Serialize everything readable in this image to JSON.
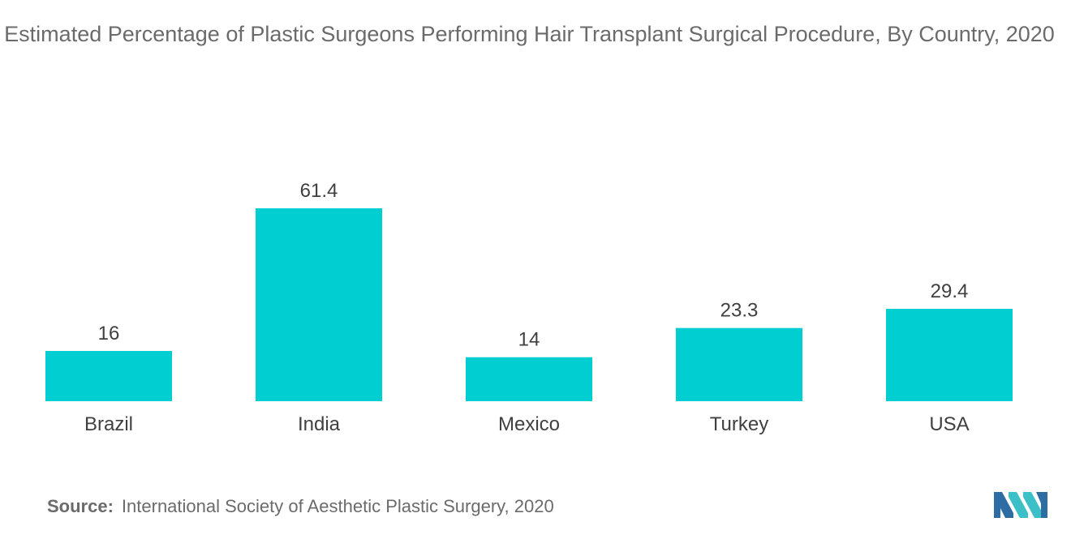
{
  "chart_data": {
    "type": "bar",
    "title": "Estimated Percentage of Plastic Surgeons Performing Hair Transplant Surgical Procedure, By Country, 2020",
    "categories": [
      "Brazil",
      "India",
      "Mexico",
      "Turkey",
      "USA"
    ],
    "values": [
      16,
      61.4,
      14,
      23.3,
      29.4
    ],
    "data_labels": [
      "16",
      "61.4",
      "14",
      "23.3",
      "29.4"
    ],
    "xlabel": "",
    "ylabel": "",
    "ylim": [
      0,
      61.4
    ],
    "grid": false,
    "legend": "none",
    "bar_color": "#00CED1"
  },
  "source": {
    "key": "Source:",
    "text": "International Society of Aesthetic Plastic Surgery, 2020"
  },
  "logo": {
    "icon": "mordor-intelligence-logo-icon",
    "colors": [
      "#2E6DA4",
      "#3CC0C8"
    ]
  }
}
